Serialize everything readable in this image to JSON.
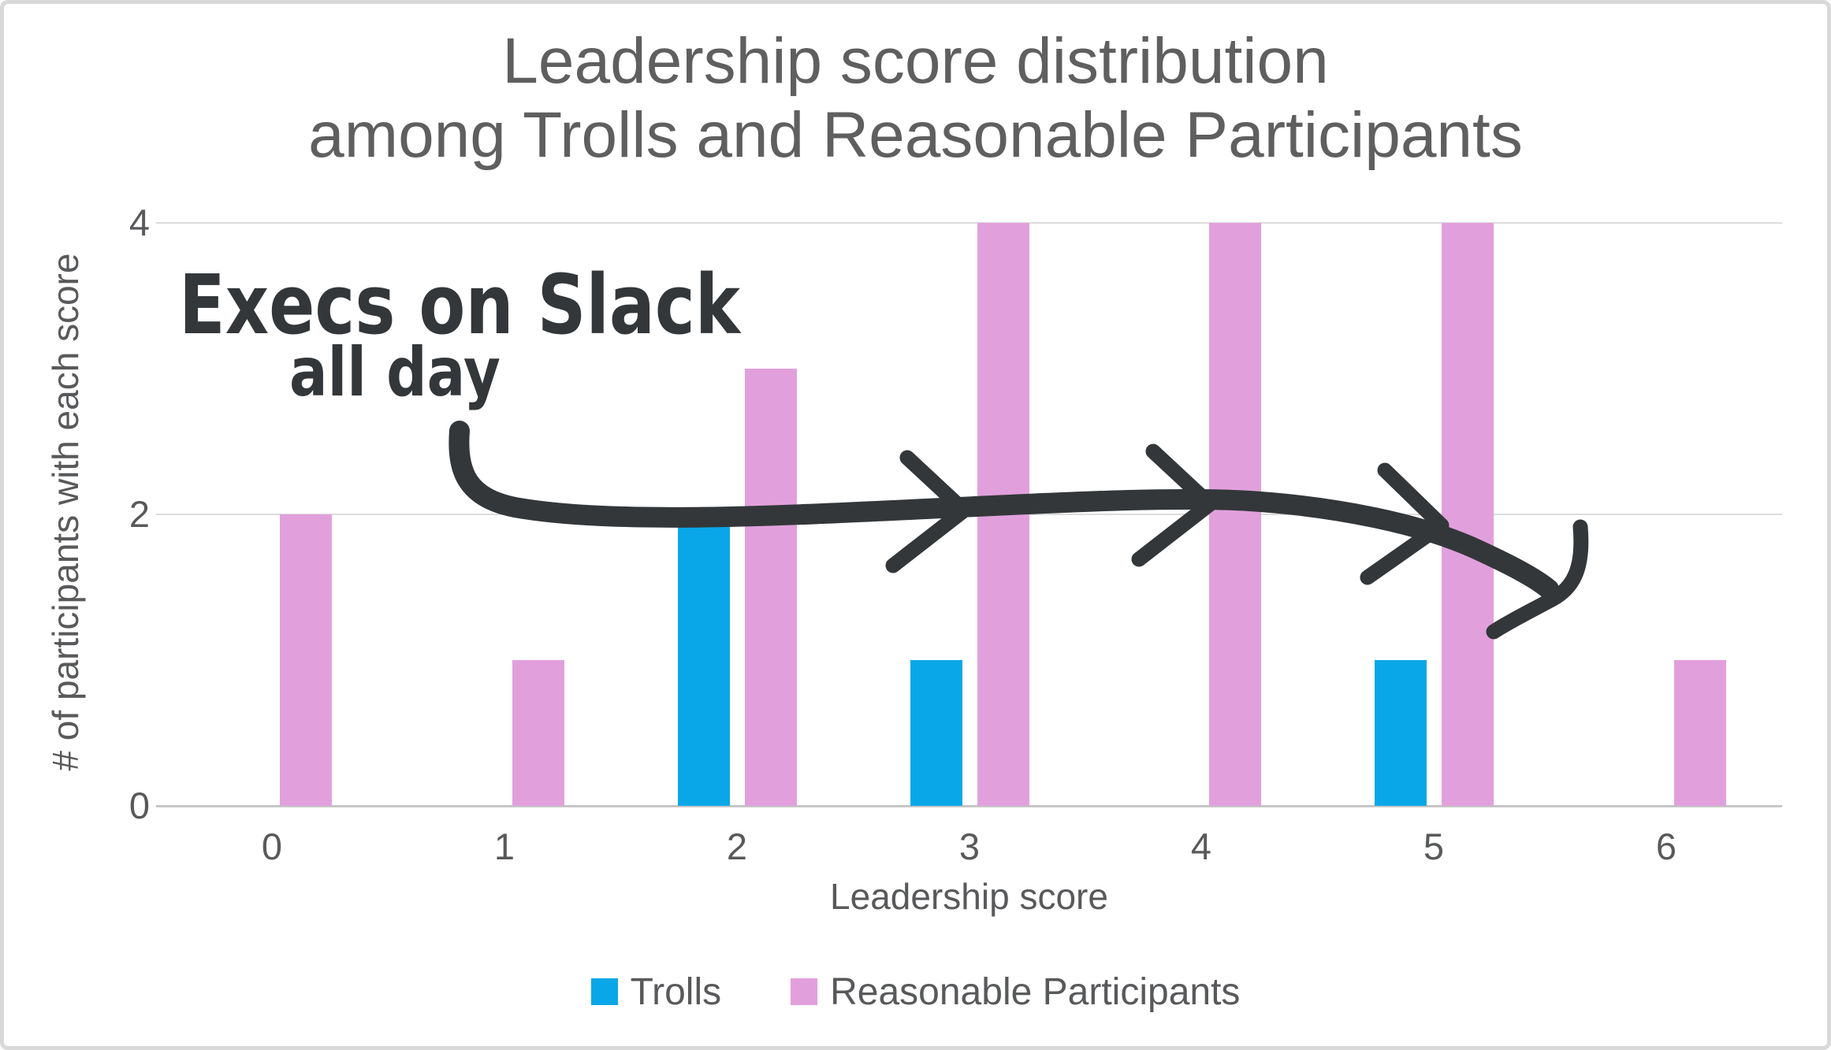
{
  "chart_data": {
    "type": "bar",
    "title_lines": [
      "Leadership score distribution",
      "among Trolls and Reasonable Participants"
    ],
    "categories": [
      "0",
      "1",
      "2",
      "3",
      "4",
      "5",
      "6"
    ],
    "series": [
      {
        "name": "Trolls",
        "color": "#0aa7e8",
        "values": [
          0,
          0,
          2,
          1,
          0,
          1,
          0
        ]
      },
      {
        "name": "Reasonable Participants",
        "color": "#e1a0dc",
        "values": [
          2,
          1,
          3,
          4,
          4,
          4,
          1
        ]
      }
    ],
    "xlabel": "Leadership score",
    "ylabel": "# of participants with each score",
    "yticks": [
      0,
      2,
      4
    ],
    "ylim": [
      0,
      4
    ],
    "grid": "horizontal-only",
    "legend_position": "bottom-center"
  },
  "annotation": {
    "line1": "Execs on Slack",
    "line2": "all day",
    "ink_color": "#33373a"
  },
  "style": {
    "title_color": "#5f5f5f",
    "axis_text_color": "#58595b",
    "gridline_color": "#dcdcdc",
    "frame_border_color": "#d9d9d9"
  }
}
